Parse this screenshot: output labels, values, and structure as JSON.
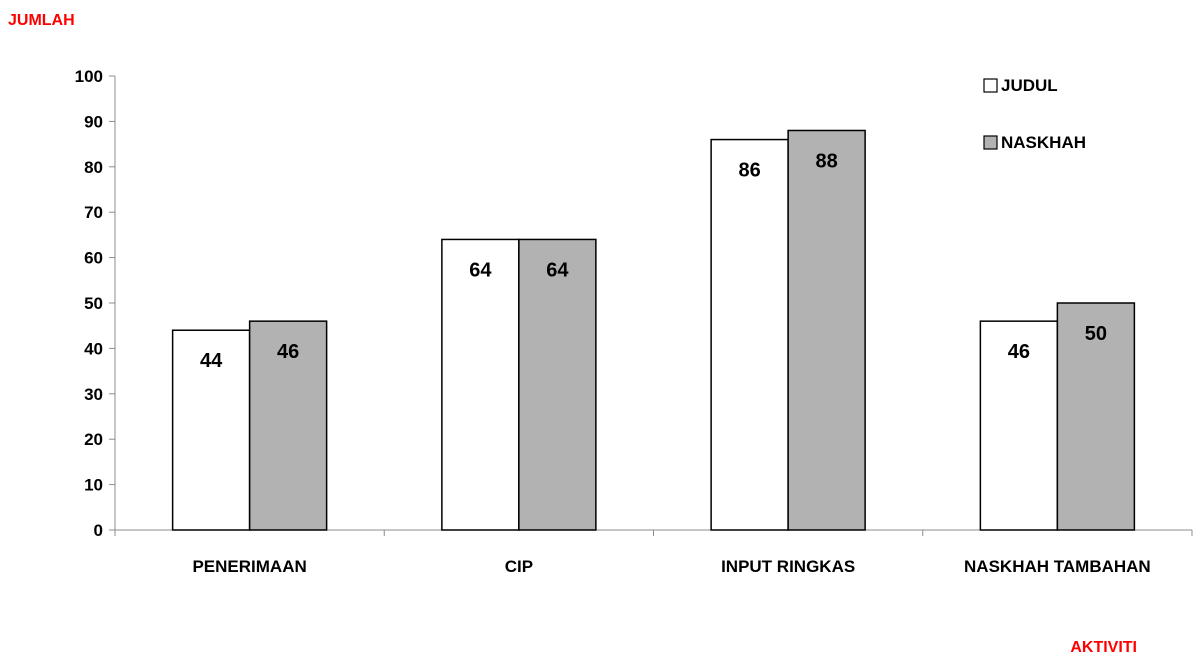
{
  "chart_data": {
    "type": "bar",
    "ylabel": "JUMLAH",
    "xlabel": "AKTIVITI",
    "categories": [
      "PENERIMAAN",
      "CIP",
      "INPUT RINGKAS",
      "NASKHAH TAMBAHAN"
    ],
    "series": [
      {
        "name": "JUDUL",
        "values": [
          44,
          64,
          86,
          46
        ],
        "color": "#ffffff"
      },
      {
        "name": "NASKHAH",
        "values": [
          46,
          64,
          88,
          50
        ],
        "color": "#b2b2b2"
      }
    ],
    "ylim": [
      0,
      100
    ],
    "yticks": [
      "0",
      "10",
      "20",
      "30",
      "40",
      "50",
      "60",
      "70",
      "80",
      "90",
      "100"
    ],
    "grid": false,
    "legend": "top-right",
    "axis_title_color": "#ff0000"
  }
}
